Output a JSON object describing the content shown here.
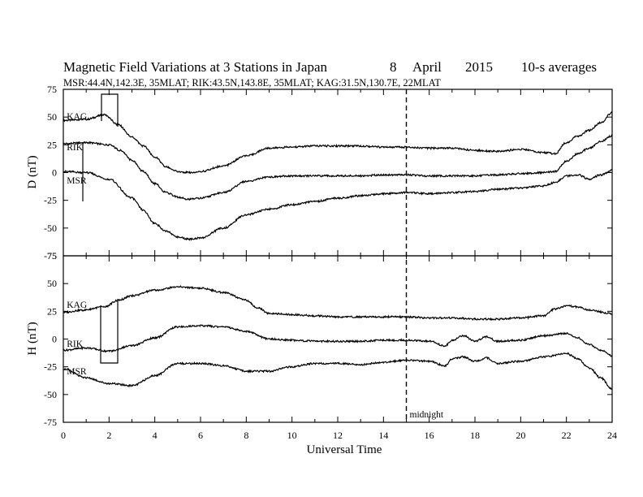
{
  "header": {
    "title": "Magnetic Field Variations at 3 Stations in Japan",
    "day": "8",
    "month": "April",
    "year": "2015",
    "averaging": "10-s averages",
    "stations_info": "MSR:44.4N,142.3E, 35MLAT;  RIK:43.5N,143.8E, 35MLAT;  KAG:31.5N,130.7E, 22MLAT"
  },
  "annotations": {
    "midnight_label": "midnight",
    "midnight_ut": 15
  },
  "chart_data": [
    {
      "type": "line",
      "panel": "D",
      "ylabel": "D (nT)",
      "xlabel": "Universal Time",
      "xlim": [
        0,
        24
      ],
      "ylim": [
        -75,
        75
      ],
      "xticks": [
        0,
        2,
        4,
        6,
        8,
        10,
        12,
        14,
        16,
        18,
        20,
        22,
        24
      ],
      "yticks": [
        75,
        50,
        25,
        0,
        -25,
        -50,
        -75
      ],
      "series": [
        {
          "name": "KAG",
          "color": "#000000",
          "x": [
            0,
            1,
            1.8,
            2.4,
            3,
            3.5,
            4,
            4.5,
            5,
            5.5,
            6,
            7,
            8,
            9,
            10,
            11,
            12,
            13,
            14,
            15,
            16,
            17,
            18,
            19,
            20,
            21,
            21.5,
            22,
            22.5,
            23,
            23.5,
            24
          ],
          "y": [
            47,
            48,
            52,
            43,
            32,
            24,
            14,
            5,
            1,
            0,
            1,
            6,
            15,
            22,
            23,
            24,
            24,
            24,
            23,
            23,
            22,
            22,
            20,
            19,
            21,
            18,
            17,
            27,
            33,
            38,
            45,
            54
          ]
        },
        {
          "name": "RIK",
          "color": "#000000",
          "x": [
            0,
            1,
            2,
            2.5,
            3,
            3.5,
            4,
            4.5,
            5,
            5.5,
            6,
            7,
            8,
            9,
            10,
            11,
            12,
            13,
            14,
            15,
            16,
            17,
            18,
            19,
            20,
            21,
            21.5,
            22,
            22.5,
            23,
            23.5,
            24
          ],
          "y": [
            26,
            27,
            25,
            20,
            11,
            1,
            -10,
            -18,
            -22,
            -24,
            -23,
            -18,
            -8,
            -4,
            -3,
            -3,
            -3,
            -3,
            -2,
            -2,
            -3,
            -3,
            -3,
            -2,
            -1,
            0,
            1,
            10,
            17,
            22,
            28,
            33
          ]
        },
        {
          "name": "MSR",
          "color": "#000000",
          "x": [
            0,
            1,
            2,
            3,
            3.5,
            4,
            4.5,
            5,
            5.5,
            6,
            7,
            8,
            9,
            10,
            11,
            12,
            13,
            14,
            15,
            16,
            17,
            18,
            19,
            20,
            21,
            21.5,
            22,
            22.5,
            23,
            23.5,
            24
          ],
          "y": [
            1,
            0,
            -6,
            -23,
            -34,
            -46,
            -53,
            -58,
            -60,
            -59,
            -50,
            -38,
            -33,
            -29,
            -26,
            -23,
            -21,
            -19,
            -18,
            -19,
            -18,
            -17,
            -15,
            -14,
            -12,
            -9,
            -3,
            -2,
            -6,
            -2,
            2
          ]
        }
      ]
    },
    {
      "type": "line",
      "panel": "H",
      "ylabel": "H (nT)",
      "xlabel": "Universal Time",
      "xlim": [
        0,
        24
      ],
      "ylim": [
        -75,
        75
      ],
      "xticks": [
        0,
        2,
        4,
        6,
        8,
        10,
        12,
        14,
        16,
        18,
        20,
        22,
        24
      ],
      "yticks": [
        75,
        50,
        25,
        0,
        -25,
        -50,
        -75
      ],
      "series": [
        {
          "name": "KAG",
          "color": "#000000",
          "x": [
            0,
            0.8,
            1.8,
            2.4,
            3,
            4,
            5,
            6,
            7,
            8,
            8.5,
            9,
            10,
            11,
            12,
            13,
            14,
            15,
            16,
            17,
            18,
            19,
            20,
            21,
            21.5,
            22,
            22.5,
            23,
            24
          ],
          "y": [
            24,
            26,
            29,
            35,
            39,
            44,
            47,
            46,
            42,
            35,
            28,
            23,
            22,
            21,
            20,
            20,
            20,
            20,
            19,
            19,
            18,
            18,
            19,
            21,
            27,
            30,
            29,
            26,
            23
          ]
        },
        {
          "name": "RIK",
          "color": "#000000",
          "x": [
            0,
            1,
            2,
            3,
            4,
            5,
            6,
            7,
            8,
            9,
            10,
            11,
            12,
            13,
            14,
            15,
            16,
            16.7,
            17,
            17.5,
            18,
            18.5,
            19,
            20,
            21,
            22,
            22.5,
            23,
            23.5,
            24
          ],
          "y": [
            -10,
            -8,
            -11,
            -6,
            1,
            11,
            12,
            11,
            7,
            0,
            -1,
            -2,
            -2,
            -2,
            -1,
            -1,
            -2,
            -6,
            -1,
            3,
            -2,
            2,
            -2,
            -1,
            3,
            5,
            1,
            -5,
            -10,
            -15
          ]
        },
        {
          "name": "MSR",
          "color": "#000000",
          "x": [
            0,
            1,
            2,
            3,
            4,
            5,
            6,
            7,
            8,
            9,
            10,
            11,
            12,
            13,
            14,
            15,
            16,
            16.7,
            17,
            17.5,
            18,
            18.5,
            19,
            20,
            21,
            22,
            22.5,
            23,
            23.5,
            24
          ],
          "y": [
            -27,
            -35,
            -40,
            -42,
            -33,
            -22,
            -22,
            -24,
            -29,
            -29,
            -25,
            -22,
            -22,
            -23,
            -21,
            -19,
            -20,
            -24,
            -18,
            -16,
            -20,
            -17,
            -22,
            -20,
            -16,
            -13,
            -18,
            -26,
            -35,
            -45
          ]
        }
      ]
    }
  ]
}
